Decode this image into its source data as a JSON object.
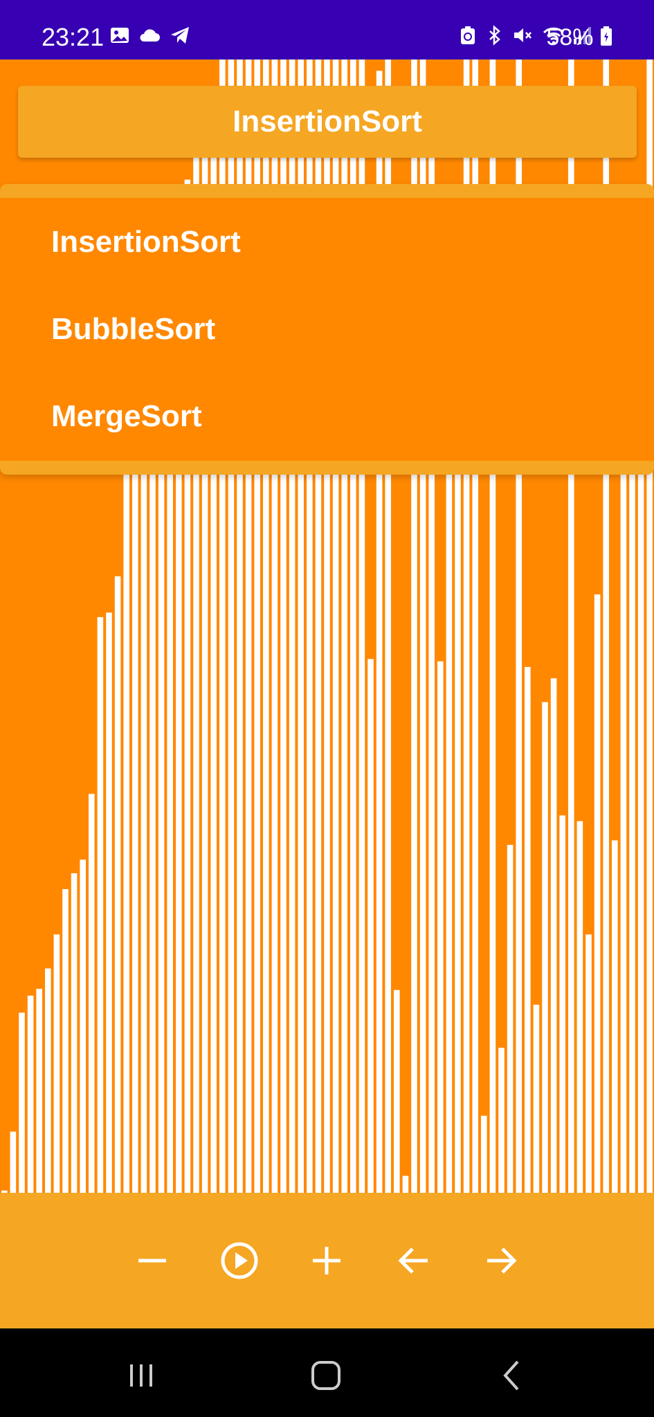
{
  "status_bar": {
    "time": "23:21",
    "battery": "58%",
    "left_icons": [
      "gallery-icon",
      "cloud-icon",
      "telegram-icon"
    ],
    "right_icons": [
      "recycle-icon",
      "bluetooth-icon",
      "mute-icon",
      "wifi-icon",
      "signal-icon",
      "battery-icon"
    ]
  },
  "selector": {
    "selected": "InsertionSort",
    "options": [
      "InsertionSort",
      "BubbleSort",
      "MergeSort"
    ]
  },
  "chart_data": {
    "type": "bar",
    "bar_color": "#FFFFFF",
    "background": "#FF8800",
    "values": [
      2,
      54,
      159,
      174,
      180,
      198,
      228,
      268,
      282,
      294,
      352,
      508,
      512,
      544,
      675,
      714,
      758,
      766,
      790,
      834,
      870,
      894,
      936,
      962,
      970,
      1000,
      1000,
      1000,
      1000,
      1000,
      1000,
      1000,
      1000,
      1000,
      1000,
      1000,
      1000,
      1000,
      1000,
      1000,
      1000,
      1000,
      471,
      990,
      1000,
      179,
      15,
      1000,
      1000,
      951,
      469,
      755,
      680,
      1000,
      1000,
      68,
      1000,
      128,
      307,
      1000,
      464,
      166,
      433,
      454,
      333,
      1000,
      328,
      228,
      528,
      1000,
      311,
      720,
      653,
      664,
      1000
    ]
  },
  "controls": {
    "buttons": [
      "minus-icon",
      "play-icon",
      "plus-icon",
      "arrow-left-icon",
      "arrow-right-icon"
    ]
  },
  "nav_bar": {
    "buttons": [
      "recents-icon",
      "home-icon",
      "back-icon"
    ]
  },
  "colors": {
    "primary": "#3700B3",
    "background": "#FF8800",
    "accent": "#F5A623",
    "text": "#FFFFFF"
  }
}
